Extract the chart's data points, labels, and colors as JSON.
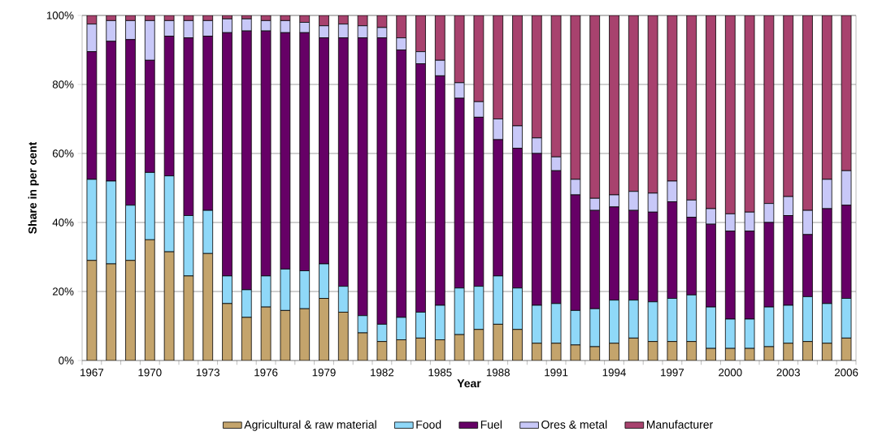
{
  "chart_data": {
    "type": "bar",
    "stacked": true,
    "xlabel": "Year",
    "ylabel": "Share in per cent",
    "categories": [
      "1967",
      null,
      null,
      "1970",
      null,
      null,
      "1973",
      null,
      null,
      "1976",
      null,
      null,
      "1979",
      null,
      null,
      "1982",
      null,
      null,
      "1985",
      null,
      null,
      "1988",
      null,
      null,
      "1991",
      null,
      null,
      "1994",
      null,
      null,
      "1997",
      null,
      null,
      "2000",
      null,
      null,
      "2003",
      null,
      null,
      "2006"
    ],
    "series": [
      {
        "name": "Agricultural & raw material",
        "color": "#c4a46c",
        "values": [
          29,
          28,
          29,
          35,
          31.5,
          24.5,
          31,
          16.5,
          12.5,
          15.5,
          14.5,
          15,
          18,
          14,
          8,
          5.5,
          6,
          6.5,
          6,
          7.5,
          9,
          10.5,
          9,
          5,
          5,
          4.5,
          4,
          5,
          6.5,
          5.5,
          5.5,
          5.5,
          3.5,
          3.5,
          3.5,
          4,
          5,
          5.5,
          5,
          6.5
        ]
      },
      {
        "name": "Food",
        "color": "#8fd8f8",
        "values": [
          23.5,
          24,
          16,
          19.5,
          22,
          17.5,
          12.5,
          8,
          8,
          9,
          12,
          11,
          10,
          7.5,
          5,
          5,
          6.5,
          7.5,
          10,
          13.5,
          12.5,
          14,
          12,
          11,
          11.5,
          10,
          11,
          12.5,
          11,
          11.5,
          12.5,
          13.5,
          12,
          8.5,
          8.5,
          11.5,
          11,
          13,
          11.5,
          11.5
        ]
      },
      {
        "name": "Fuel",
        "color": "#660066",
        "values": [
          37,
          40.5,
          48,
          32.5,
          40.5,
          51.5,
          50.5,
          70.5,
          75,
          71,
          68.5,
          69,
          65.5,
          72,
          80.5,
          83,
          77.5,
          72,
          66.5,
          55,
          49,
          39.5,
          40.5,
          44,
          38.5,
          33.5,
          28.5,
          27,
          26,
          26,
          28,
          22.5,
          24,
          25.5,
          25.5,
          24.5,
          26,
          18,
          27.5,
          27
        ]
      },
      {
        "name": "Ores & metal",
        "color": "#c8c8f8",
        "values": [
          8,
          6,
          5.5,
          11.5,
          4.5,
          5,
          4.5,
          4,
          3.5,
          3,
          3.5,
          3,
          3.5,
          4,
          3.5,
          3,
          3.5,
          3.5,
          4.5,
          4.5,
          4.5,
          6,
          6.5,
          4.5,
          4,
          4.5,
          3.5,
          3.5,
          5.5,
          5.5,
          6,
          5,
          4.5,
          5,
          5.5,
          5.5,
          5.5,
          7,
          8.5,
          10
        ]
      },
      {
        "name": "Manufacturer",
        "color": "#a8426e",
        "values": [
          2.5,
          1.5,
          1.5,
          1.5,
          1.5,
          1.5,
          1.5,
          1,
          1,
          1.5,
          1.5,
          2,
          3,
          2.5,
          3,
          3.5,
          6.5,
          10.5,
          13,
          19.5,
          25,
          30,
          32,
          35.5,
          41,
          47.5,
          53,
          52,
          51,
          51.5,
          48,
          53.5,
          56,
          57.5,
          57,
          54.5,
          52.5,
          56.5,
          47.5,
          45
        ]
      }
    ],
    "ylim": [
      0,
      100
    ],
    "yticks": [
      {
        "value": 0,
        "label": "0%"
      },
      {
        "value": 20,
        "label": "20%"
      },
      {
        "value": 40,
        "label": "40%"
      },
      {
        "value": 60,
        "label": "60%"
      },
      {
        "value": 80,
        "label": "80%"
      },
      {
        "value": 100,
        "label": "100%"
      }
    ],
    "grid": "y",
    "legend": "bottom"
  }
}
